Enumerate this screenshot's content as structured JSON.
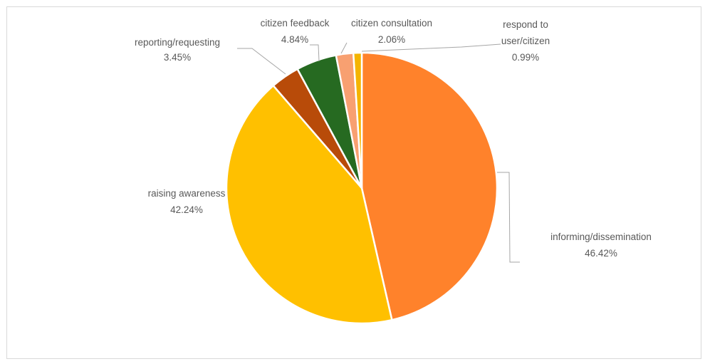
{
  "chart_data": {
    "type": "pie",
    "title": "",
    "slices": [
      {
        "label": "informing/dissemination",
        "value": 46.42,
        "value_label": "46.42%",
        "color": "#FF822B"
      },
      {
        "label": "raising awareness",
        "value": 42.24,
        "value_label": "42.24%",
        "color": "#FFC000"
      },
      {
        "label": "reporting/requesting",
        "value": 3.45,
        "value_label": "3.45%",
        "color": "#B84B09"
      },
      {
        "label": "citizen feedback",
        "value": 4.84,
        "value_label": "4.84%",
        "color": "#266A21"
      },
      {
        "label": "citizen consultation",
        "value": 2.06,
        "value_label": "2.06%",
        "color": "#F8A071"
      },
      {
        "label": "respond to user/citizen",
        "label_lines": [
          "respond to",
          "user/citizen"
        ],
        "value": 0.99,
        "value_label": "0.99%",
        "color": "#F4B400"
      }
    ],
    "start_angle": "12 o'clock",
    "direction": "clockwise",
    "legend": "none",
    "data_labels": "outside with leader lines"
  }
}
